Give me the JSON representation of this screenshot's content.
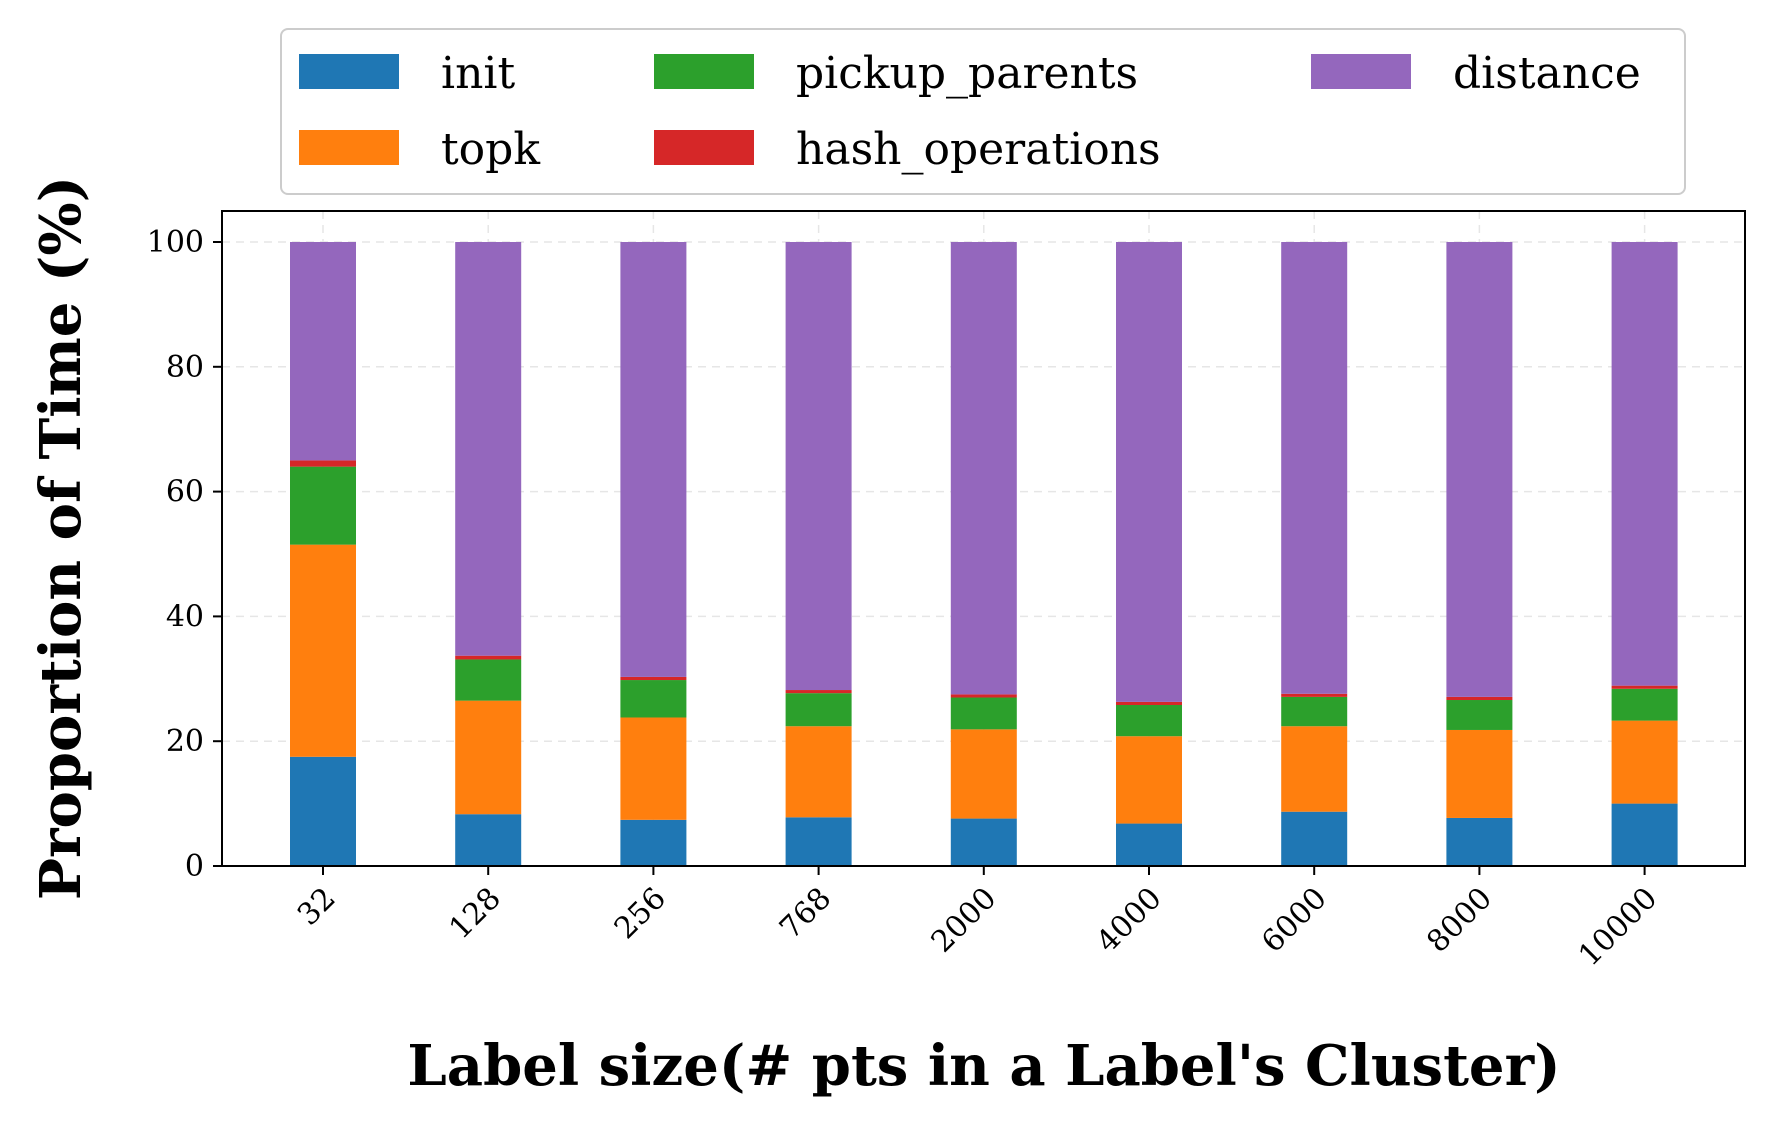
{
  "chart_data": {
    "type": "bar",
    "stacked": true,
    "categories": [
      "32",
      "128",
      "256",
      "768",
      "2000",
      "4000",
      "6000",
      "8000",
      "10000"
    ],
    "series": [
      {
        "name": "init",
        "color": "#1f77b4",
        "values": [
          17.5,
          8.3,
          7.4,
          7.8,
          7.6,
          6.8,
          8.7,
          7.7,
          10.0
        ]
      },
      {
        "name": "topk",
        "color": "#ff7f0e",
        "values": [
          34.0,
          18.2,
          16.4,
          14.6,
          14.3,
          14.0,
          13.7,
          14.1,
          13.3
        ]
      },
      {
        "name": "pickup_parents",
        "color": "#2ca02c",
        "values": [
          12.5,
          6.6,
          6.0,
          5.3,
          5.1,
          5.0,
          4.7,
          4.8,
          5.1
        ]
      },
      {
        "name": "hash_operations",
        "color": "#d62728",
        "values": [
          1.0,
          0.6,
          0.5,
          0.5,
          0.5,
          0.5,
          0.5,
          0.5,
          0.5
        ]
      },
      {
        "name": "distance",
        "color": "#9467bd",
        "values": [
          35.0,
          66.3,
          69.7,
          71.8,
          72.5,
          73.7,
          72.4,
          72.9,
          71.1
        ]
      }
    ],
    "xlabel": "Label size(# pts in a Label's Cluster)",
    "ylabel": "Proportion of Time (%)",
    "ylim": [
      0,
      100
    ],
    "yticks": [
      0,
      20,
      40,
      60,
      80,
      100
    ],
    "grid": true,
    "legend_position": "top",
    "legend_columns": 3
  }
}
